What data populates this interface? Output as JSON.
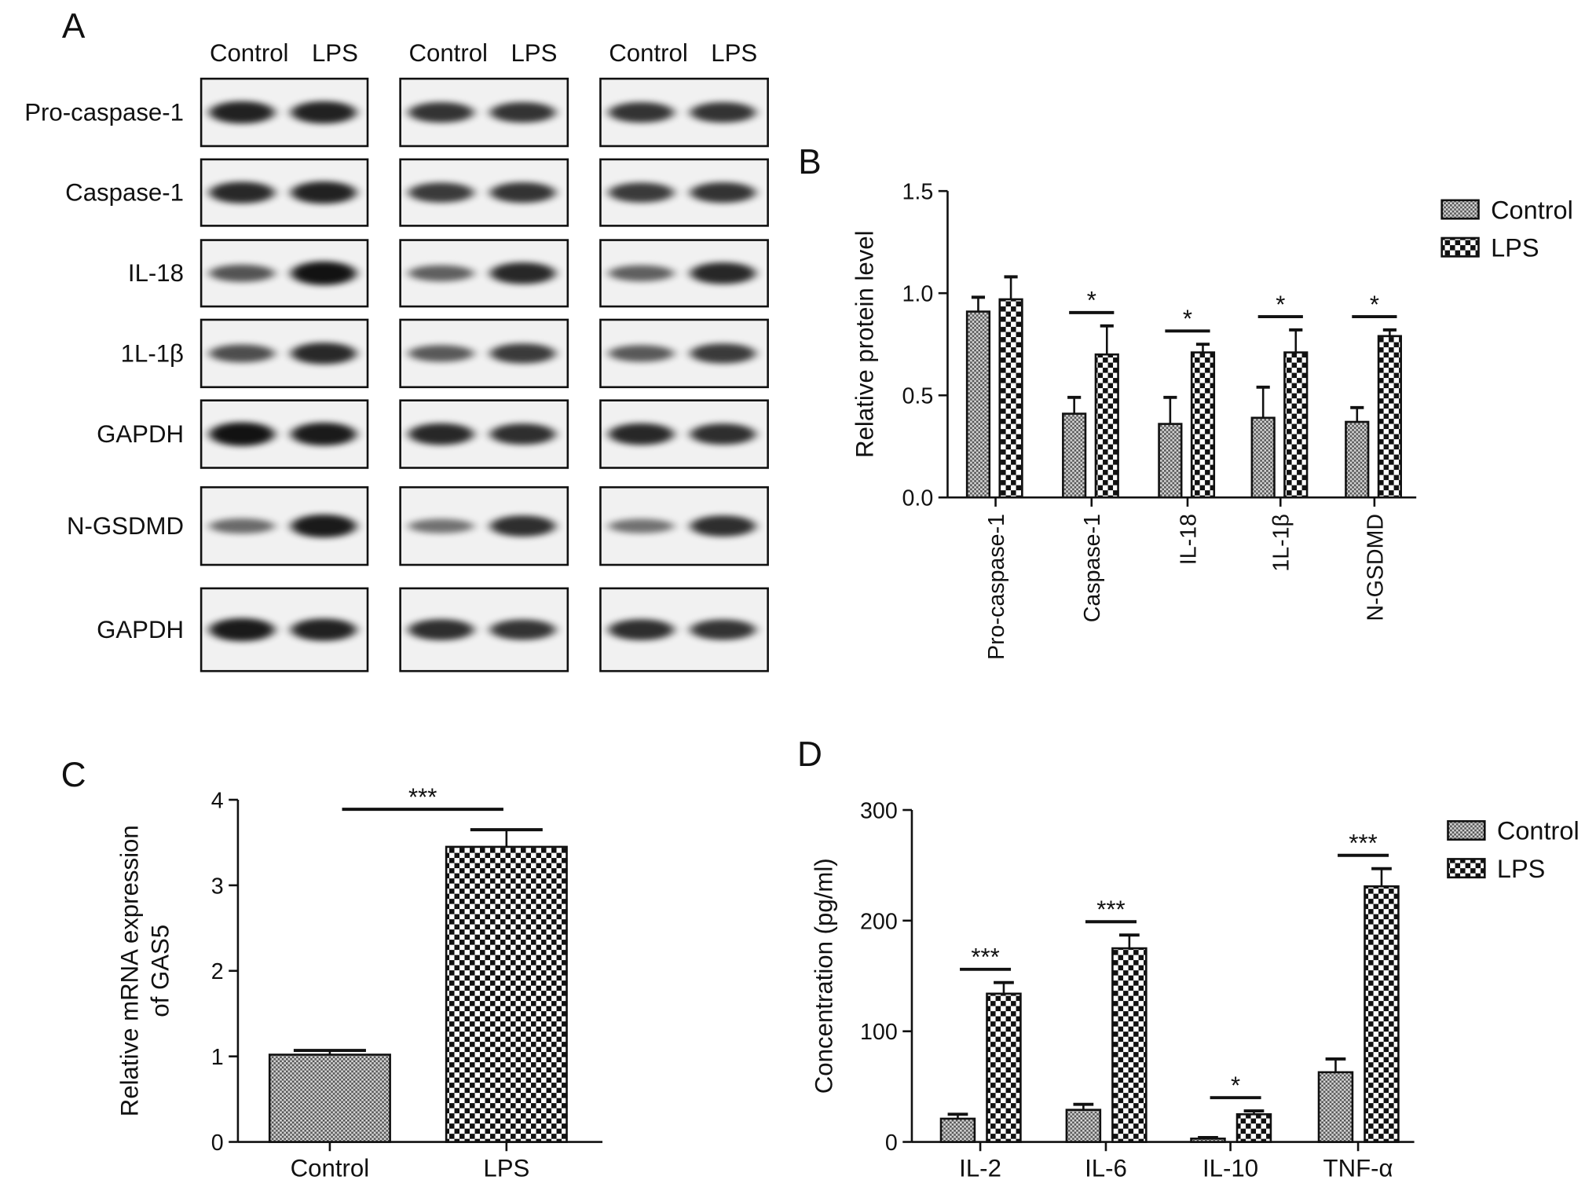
{
  "blot": {
    "panel": "A",
    "columns": [
      [
        "Control",
        "LPS"
      ],
      [
        "Control",
        "LPS"
      ],
      [
        "Control",
        "LPS"
      ]
    ],
    "rows": [
      "Pro-caspase-1",
      "Caspase-1",
      "IL-18",
      "1L-1β",
      "GAPDH",
      "N-GSDMD",
      "GAPDH"
    ]
  },
  "chart_data": [
    {
      "type": "bar",
      "panel": "B",
      "ylabel": [
        "Relative protein level"
      ],
      "categories": [
        "Pro-caspase-1",
        "Caspase-1",
        "IL-18",
        "1L-1β",
        "N-GSDMD"
      ],
      "series": [
        {
          "name": "Control",
          "values": [
            0.91,
            0.41,
            0.36,
            0.39,
            0.37
          ],
          "errors": [
            0.07,
            0.08,
            0.13,
            0.15,
            0.07
          ]
        },
        {
          "name": "LPS",
          "values": [
            0.97,
            0.7,
            0.71,
            0.71,
            0.79
          ],
          "errors": [
            0.11,
            0.14,
            0.04,
            0.11,
            0.03
          ]
        }
      ],
      "annotations": [
        null,
        "*",
        "*",
        "*",
        "*"
      ],
      "ylim": [
        0,
        1.5
      ],
      "yticks": [
        {
          "value": 0,
          "label": "0.0"
        },
        {
          "value": 0.5,
          "label": "0.5"
        },
        {
          "value": 1,
          "label": "1.0"
        },
        {
          "value": 1.5,
          "label": "1.5"
        }
      ]
    },
    {
      "type": "bar",
      "panel": "C",
      "ylabel": [
        "Relative mRNA expression",
        "of GAS5"
      ],
      "categories": [
        "Control",
        "LPS"
      ],
      "series": [
        {
          "values": [
            1.02,
            3.45
          ],
          "errors": [
            0.05,
            0.2
          ]
        }
      ],
      "annotations": [
        "***"
      ],
      "ylim": [
        0,
        4
      ],
      "yticks": [
        0,
        1,
        2,
        3,
        4
      ]
    },
    {
      "type": "bar",
      "panel": "D",
      "ylabel": [
        "Concentration (pg/ml)"
      ],
      "categories": [
        "IL-2",
        "IL-6",
        "IL-10",
        "TNF-α"
      ],
      "series": [
        {
          "name": "Control",
          "values": [
            21,
            29,
            3,
            63
          ],
          "errors": [
            4,
            5,
            1,
            12
          ]
        },
        {
          "name": "LPS",
          "values": [
            134,
            175,
            25,
            231
          ],
          "errors": [
            10,
            12,
            3,
            16
          ]
        }
      ],
      "annotations": [
        "***",
        "***",
        "*",
        "***"
      ],
      "ylim": [
        0,
        300
      ],
      "yticks": [
        0,
        100,
        200,
        300
      ]
    }
  ]
}
